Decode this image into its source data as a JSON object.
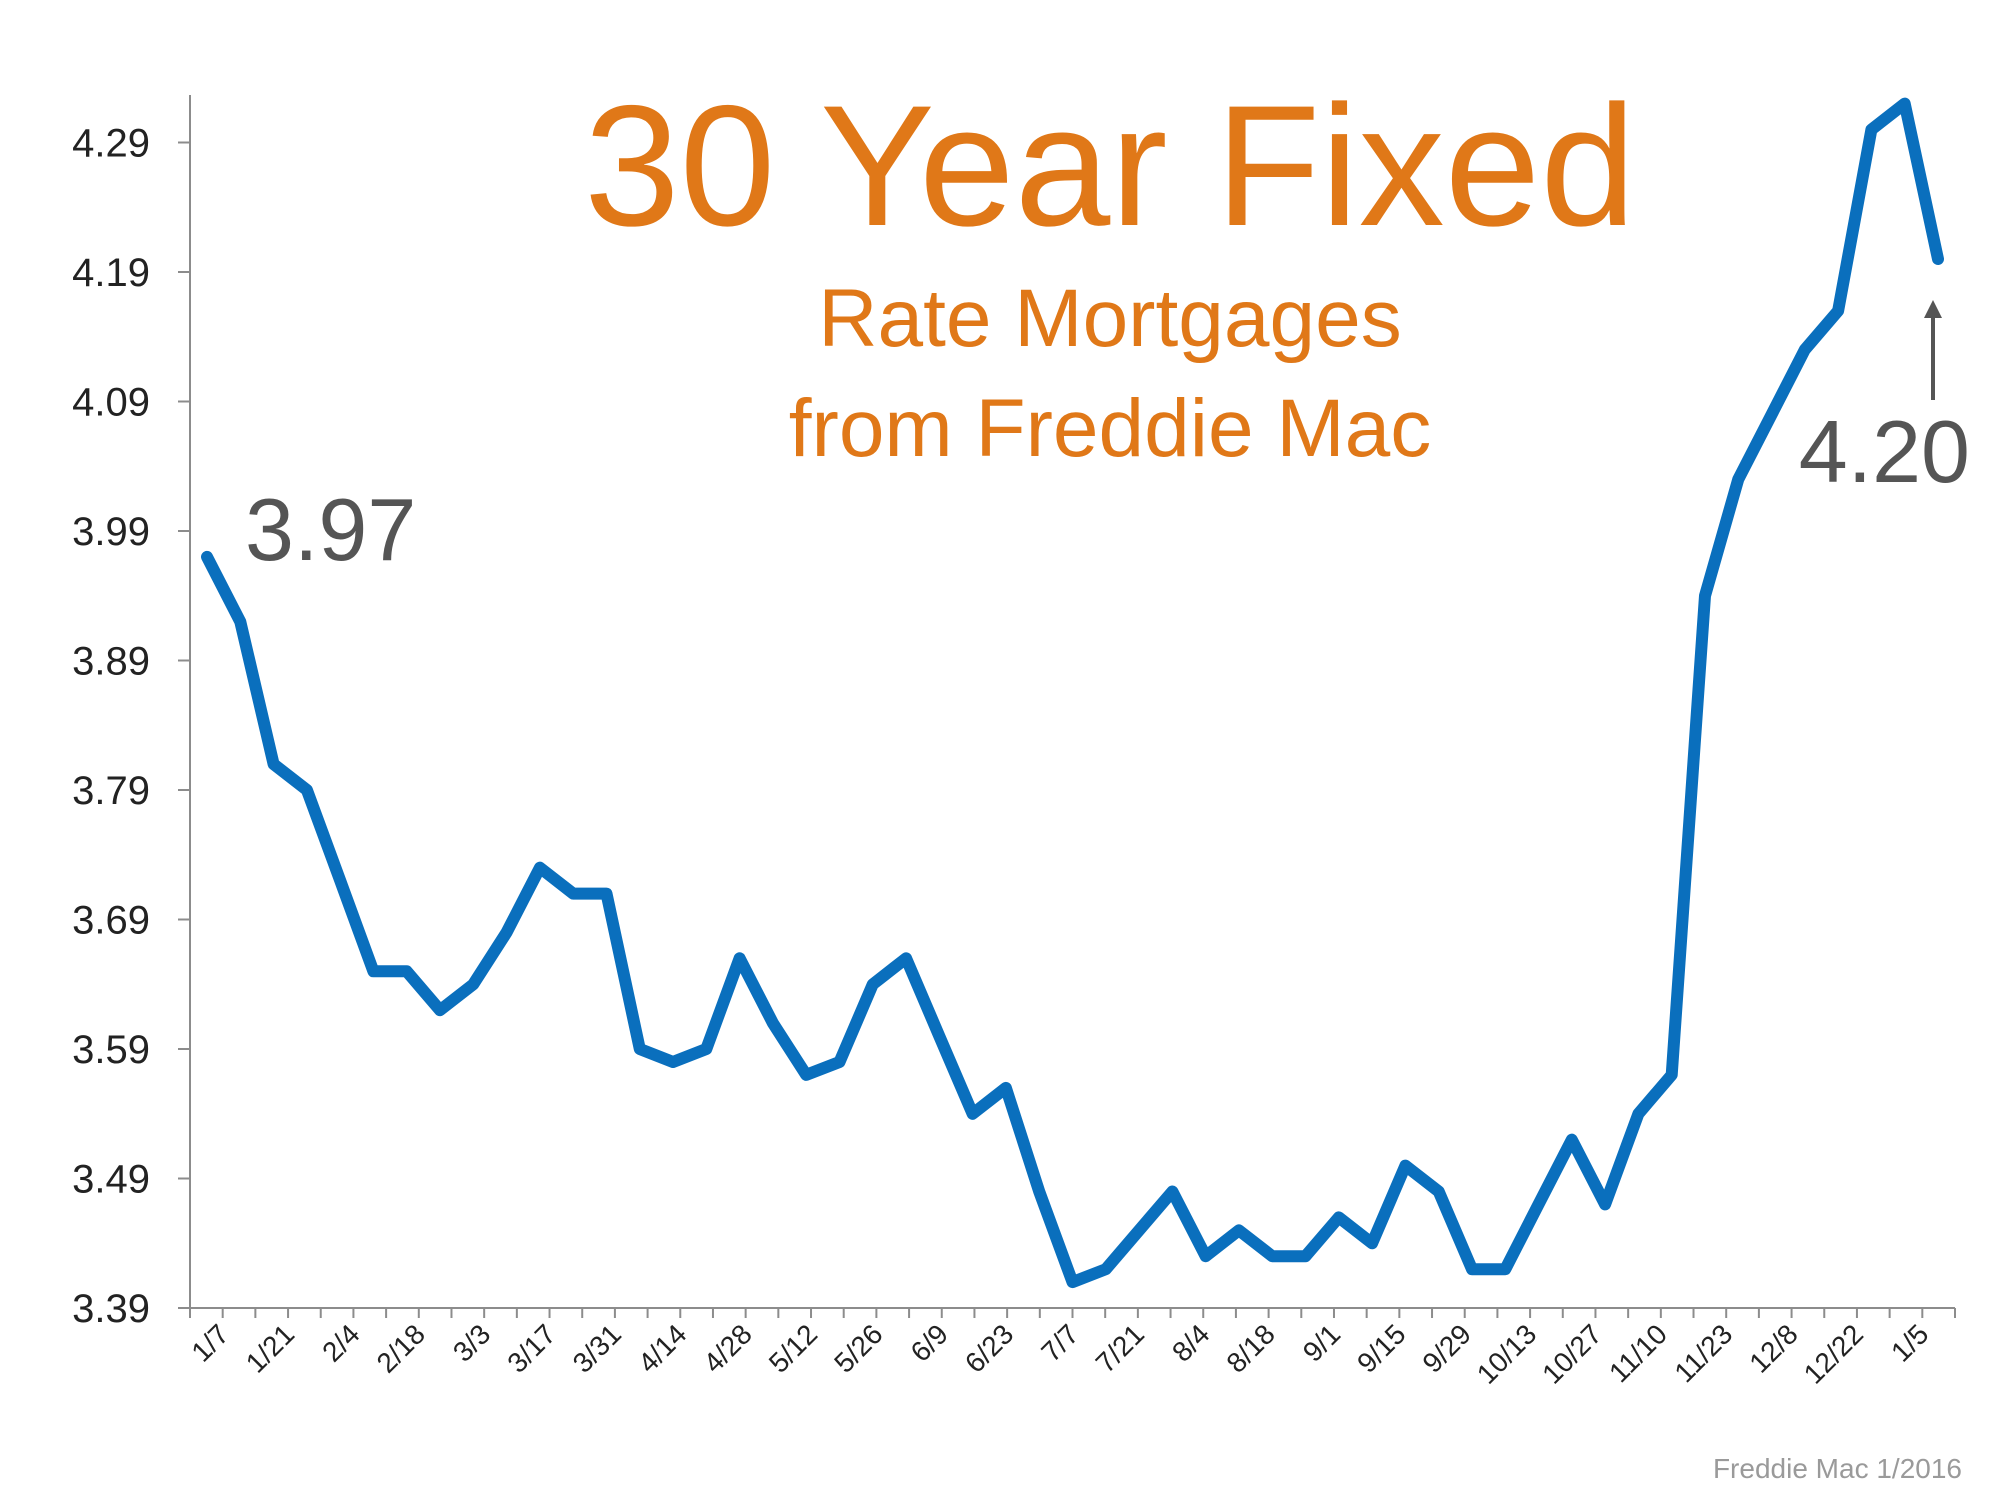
{
  "colors": {
    "line": "#0a6fbd",
    "title": "#e07818",
    "callout": "#555555",
    "axis": "#8c8c8c",
    "source": "#9a9a9a"
  },
  "chart_data": {
    "type": "line",
    "title": "30 Year Fixed",
    "subtitle_line1": "Rate Mortgages",
    "subtitle_line2": "from Freddie Mac",
    "xlabel": "",
    "ylabel": "",
    "ylim": [
      3.39,
      4.32
    ],
    "yticks": [
      "4.29",
      "4.19",
      "4.09",
      "3.99",
      "3.89",
      "3.79",
      "3.69",
      "3.59",
      "3.49",
      "3.39"
    ],
    "xticks": [
      "1/7",
      "1/21",
      "2/4",
      "2/18",
      "3/3",
      "3/17",
      "3/31",
      "4/14",
      "4/28",
      "5/12",
      "5/26",
      "6/9",
      "6/23",
      "7/7",
      "7/21",
      "8/4",
      "8/18",
      "9/1",
      "9/15",
      "9/29",
      "10/13",
      "10/27",
      "11/10",
      "11/23",
      "12/8",
      "12/22",
      "1/5"
    ],
    "grid": false,
    "values": [
      3.97,
      3.92,
      3.81,
      3.79,
      3.72,
      3.65,
      3.65,
      3.62,
      3.64,
      3.68,
      3.73,
      3.71,
      3.71,
      3.59,
      3.58,
      3.59,
      3.66,
      3.61,
      3.57,
      3.58,
      3.64,
      3.66,
      3.6,
      3.54,
      3.56,
      3.48,
      3.41,
      3.42,
      3.45,
      3.48,
      3.43,
      3.45,
      3.43,
      3.43,
      3.46,
      3.44,
      3.5,
      3.48,
      3.42,
      3.42,
      3.47,
      3.52,
      3.47,
      3.54,
      3.57,
      3.94,
      4.03,
      4.08,
      4.13,
      4.16,
      4.3,
      4.32,
      4.2
    ],
    "callout_start": "3.97",
    "callout_end": "4.20",
    "source": "Freddie Mac 1/2016"
  }
}
